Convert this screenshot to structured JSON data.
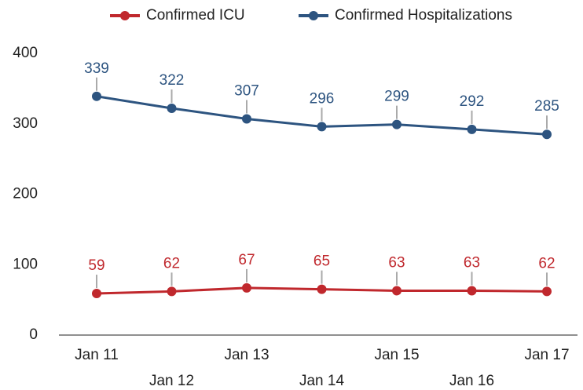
{
  "chart_data": {
    "type": "line",
    "categories": [
      "Jan 11",
      "Jan 12",
      "Jan 13",
      "Jan 14",
      "Jan 15",
      "Jan 16",
      "Jan 17"
    ],
    "series": [
      {
        "name": "Confirmed ICU",
        "color": "#c0282d",
        "values": [
          59,
          62,
          67,
          65,
          63,
          63,
          62
        ]
      },
      {
        "name": "Confirmed Hospitalizations",
        "color": "#2d5480",
        "values": [
          339,
          322,
          307,
          296,
          299,
          292,
          285
        ]
      }
    ],
    "ylim": [
      0,
      400
    ],
    "yticks": [
      0,
      100,
      200,
      300,
      400
    ],
    "grid": false,
    "legend": "top"
  }
}
